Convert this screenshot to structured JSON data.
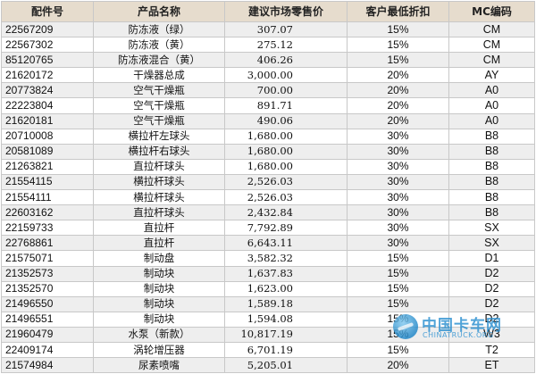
{
  "table": {
    "headers": {
      "part_no": "配件号",
      "name": "产品名称",
      "price": "建议市场零售价",
      "discount": "客户最低折扣",
      "mc_code": "MC编码"
    },
    "rows": [
      {
        "part_no": "22567209",
        "name": "防冻液（绿）",
        "price": "307.07",
        "discount": "15%",
        "mc_code": "CM"
      },
      {
        "part_no": "22567302",
        "name": "防冻液（黄）",
        "price": "275.12",
        "discount": "15%",
        "mc_code": "CM"
      },
      {
        "part_no": "85120765",
        "name": "防冻液混合（黄）",
        "price": "406.26",
        "discount": "15%",
        "mc_code": "CM"
      },
      {
        "part_no": "21620172",
        "name": "干燥器总成",
        "price": "3,000.00",
        "discount": "20%",
        "mc_code": "AY"
      },
      {
        "part_no": "20773824",
        "name": "空气干燥瓶",
        "price": "700.00",
        "discount": "20%",
        "mc_code": "A0"
      },
      {
        "part_no": "22223804",
        "name": "空气干燥瓶",
        "price": "891.71",
        "discount": "20%",
        "mc_code": "A0"
      },
      {
        "part_no": "21620181",
        "name": "空气干燥瓶",
        "price": "490.06",
        "discount": "20%",
        "mc_code": "A0"
      },
      {
        "part_no": "20710008",
        "name": "横拉杆左球头",
        "price": "1,680.00",
        "discount": "30%",
        "mc_code": "B8"
      },
      {
        "part_no": "20581089",
        "name": "横拉杆右球头",
        "price": "1,680.00",
        "discount": "30%",
        "mc_code": "B8"
      },
      {
        "part_no": "21263821",
        "name": "直拉杆球头",
        "price": "1,680.00",
        "discount": "30%",
        "mc_code": "B8"
      },
      {
        "part_no": "21554115",
        "name": "横拉杆球头",
        "price": "2,526.03",
        "discount": "30%",
        "mc_code": "B8"
      },
      {
        "part_no": "21554111",
        "name": "横拉杆球头",
        "price": "2,526.03",
        "discount": "30%",
        "mc_code": "B8"
      },
      {
        "part_no": "22603162",
        "name": "直拉杆球头",
        "price": "2,432.84",
        "discount": "30%",
        "mc_code": "B8"
      },
      {
        "part_no": "22159733",
        "name": "直拉杆",
        "price": "7,792.89",
        "discount": "30%",
        "mc_code": "SX"
      },
      {
        "part_no": "22768861",
        "name": "直拉杆",
        "price": "6,643.11",
        "discount": "30%",
        "mc_code": "SX"
      },
      {
        "part_no": "21575071",
        "name": "制动盘",
        "price": "3,582.32",
        "discount": "15%",
        "mc_code": "D1"
      },
      {
        "part_no": "21352573",
        "name": "制动块",
        "price": "1,637.83",
        "discount": "15%",
        "mc_code": "D2"
      },
      {
        "part_no": "21352570",
        "name": "制动块",
        "price": "1,623.00",
        "discount": "15%",
        "mc_code": "D2"
      },
      {
        "part_no": "21496550",
        "name": "制动块",
        "price": "1,589.18",
        "discount": "15%",
        "mc_code": "D2"
      },
      {
        "part_no": "21496551",
        "name": "制动块",
        "price": "1,594.08",
        "discount": "15%",
        "mc_code": "D2"
      },
      {
        "part_no": "21960479",
        "name": "水泵（新款）",
        "price": "10,817.19",
        "discount": "15%",
        "mc_code": "W3"
      },
      {
        "part_no": "22409174",
        "name": "涡轮增压器",
        "price": "6,701.19",
        "discount": "15%",
        "mc_code": "T2"
      },
      {
        "part_no": "21574984",
        "name": "尿素喷嘴",
        "price": "5,205.01",
        "discount": "20%",
        "mc_code": "ET"
      }
    ]
  },
  "watermark": {
    "name_cn": "中国卡车网",
    "name_en": "CHINATRUCK.ORG"
  }
}
